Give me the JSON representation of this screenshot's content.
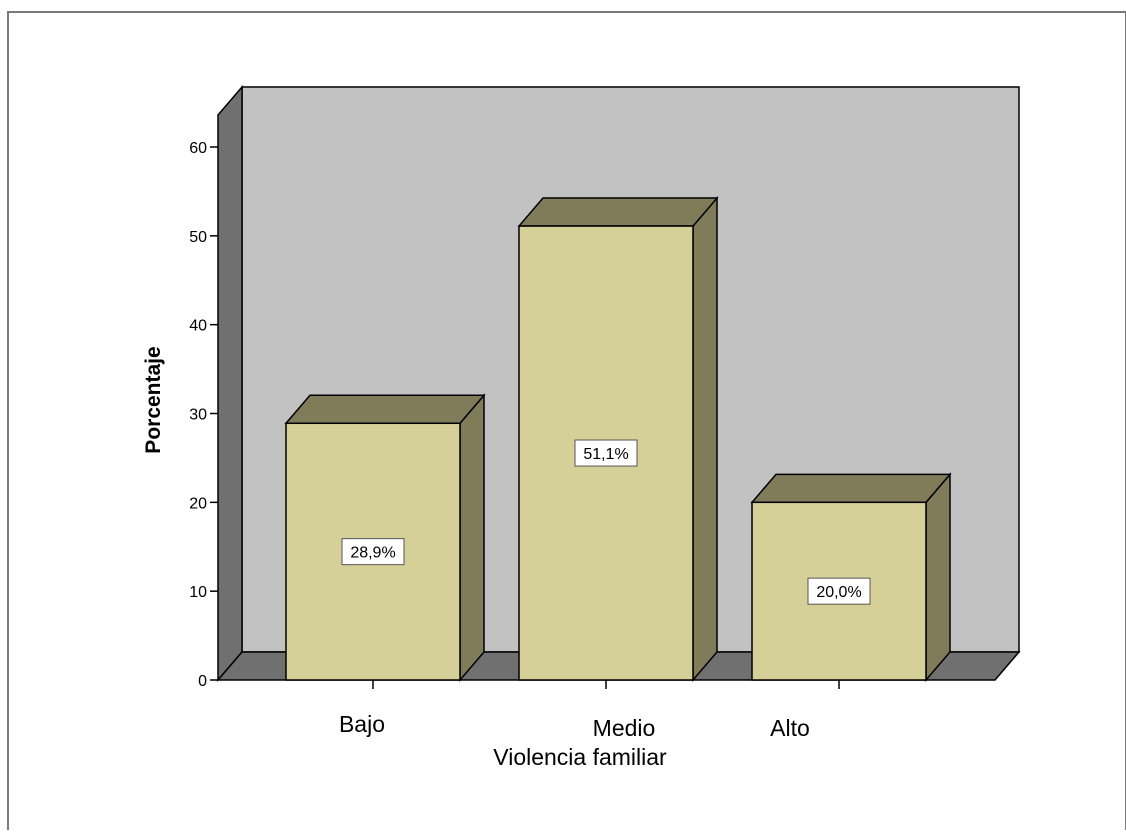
{
  "chart_data": {
    "type": "bar",
    "title": "",
    "xlabel": "Violencia familiar",
    "ylabel": "Porcentaje",
    "categories": [
      "Bajo",
      "Medio",
      "Alto"
    ],
    "values": [
      28.9,
      51.1,
      20.0
    ],
    "value_labels": [
      "28,9%",
      "51,1%",
      "20,0%"
    ],
    "ylim": [
      0,
      60
    ],
    "yticks": [
      0,
      10,
      20,
      30,
      40,
      50,
      60
    ],
    "grid": false,
    "legend": "none",
    "style": "3d",
    "colors": {
      "bar_front": "#d5cf98",
      "bar_side": "#807b58",
      "back_wall": "#c2c2c2",
      "side_wall": "#707070",
      "outline": "#000000"
    }
  }
}
